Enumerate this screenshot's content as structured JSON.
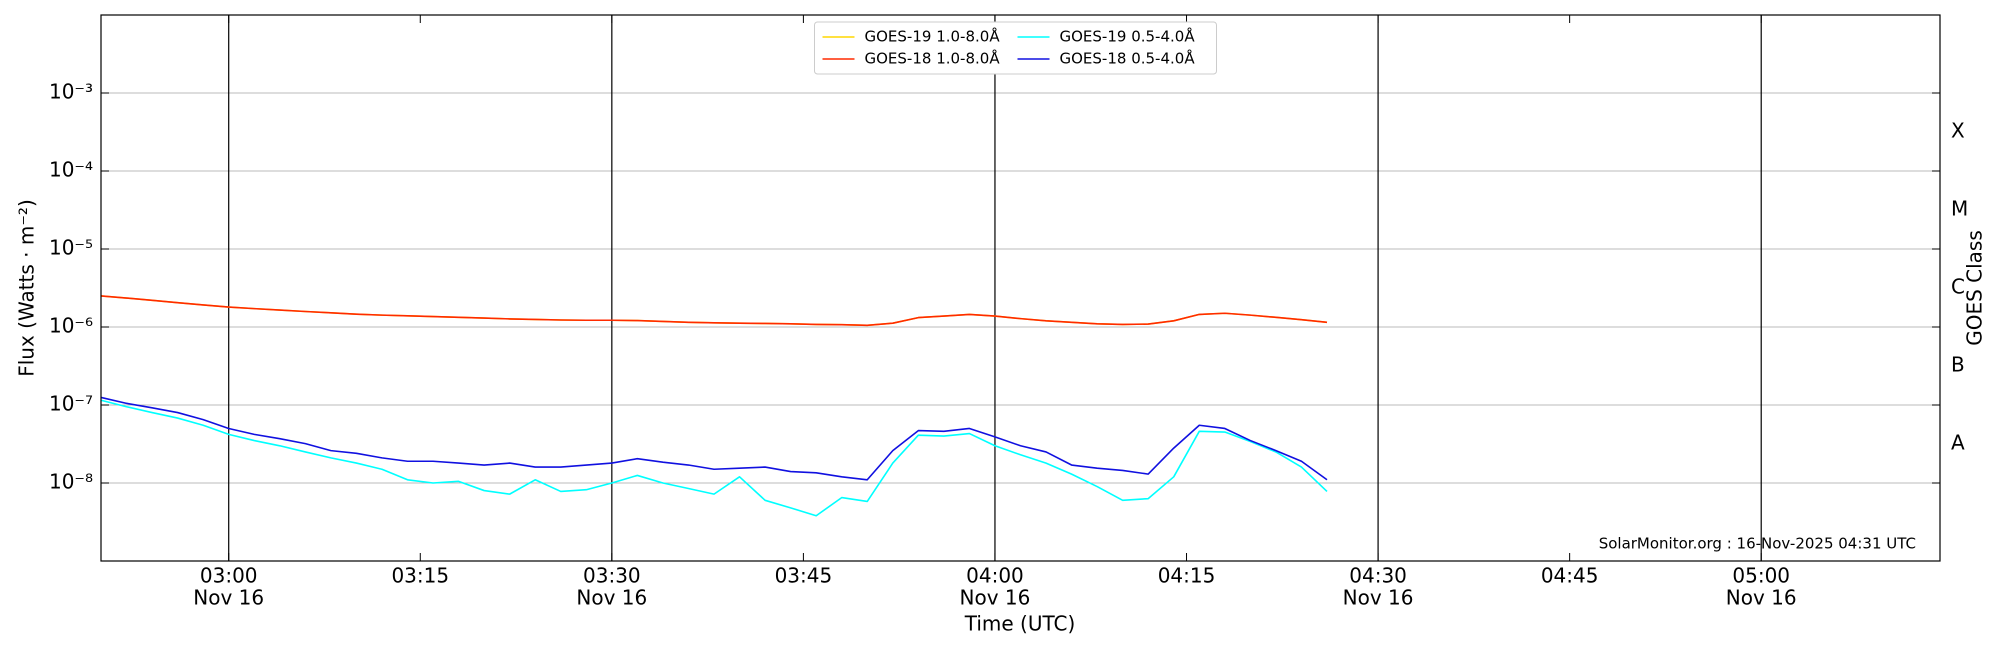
{
  "chart_data": {
    "type": "line",
    "ylabel": "Flux (Watts · m⁻²)",
    "xlabel": "Time (UTC)",
    "y2label": "GOES Class",
    "annotation": "SolarMonitor.org : 16-Nov-2025 04:31 UTC",
    "log_y": true,
    "grid": true,
    "legend": "upper center",
    "xlim": [
      "Nov 16 02:50",
      "Nov 16 05:14"
    ],
    "xticks": [
      {
        "value": "Nov 16 03:00",
        "label": "03:00",
        "date": "Nov 16"
      },
      {
        "value": "Nov 16 03:15",
        "label": "03:15"
      },
      {
        "value": "Nov 16 03:30",
        "label": "03:30",
        "date": "Nov 16"
      },
      {
        "value": "Nov 16 03:45",
        "label": "03:45"
      },
      {
        "value": "Nov 16 04:00",
        "label": "04:00",
        "date": "Nov 16"
      },
      {
        "value": "Nov 16 04:15",
        "label": "04:15"
      },
      {
        "value": "Nov 16 04:30",
        "label": "04:30",
        "date": "Nov 16"
      },
      {
        "value": "Nov 16 04:45",
        "label": "04:45"
      },
      {
        "value": "Nov 16 05:00",
        "label": "05:00",
        "date": "Nov 16"
      }
    ],
    "ylim": [
      1e-09,
      0.01
    ],
    "yticks": [
      {
        "value": 1e-08,
        "label": "10⁻⁸"
      },
      {
        "value": 1e-07,
        "label": "10⁻⁷"
      },
      {
        "value": 1e-06,
        "label": "10⁻⁶"
      },
      {
        "value": 1e-05,
        "label": "10⁻⁵"
      },
      {
        "value": 0.0001,
        "label": "10⁻⁴"
      },
      {
        "value": 0.001,
        "label": "10⁻³"
      }
    ],
    "y2lim": [
      1e-09,
      0.01
    ],
    "y2ticks": [
      {
        "value": 3.16e-08,
        "label": "A"
      },
      {
        "value": 3.16e-07,
        "label": "B"
      },
      {
        "value": 3.16e-06,
        "label": "C"
      },
      {
        "value": 3.16e-05,
        "label": "M"
      },
      {
        "value": 0.000316,
        "label": "X"
      }
    ],
    "x": [
      "Nov 16 02:50",
      "Nov 16 02:52",
      "Nov 16 02:54",
      "Nov 16 02:56",
      "Nov 16 02:58",
      "Nov 16 03:00",
      "Nov 16 03:02",
      "Nov 16 03:04",
      "Nov 16 03:06",
      "Nov 16 03:08",
      "Nov 16 03:10",
      "Nov 16 03:12",
      "Nov 16 03:14",
      "Nov 16 03:16",
      "Nov 16 03:18",
      "Nov 16 03:20",
      "Nov 16 03:22",
      "Nov 16 03:24",
      "Nov 16 03:26",
      "Nov 16 03:28",
      "Nov 16 03:30",
      "Nov 16 03:32",
      "Nov 16 03:34",
      "Nov 16 03:36",
      "Nov 16 03:38",
      "Nov 16 03:40",
      "Nov 16 03:42",
      "Nov 16 03:44",
      "Nov 16 03:46",
      "Nov 16 03:48",
      "Nov 16 03:50",
      "Nov 16 03:52",
      "Nov 16 03:54",
      "Nov 16 03:56",
      "Nov 16 03:58",
      "Nov 16 04:00",
      "Nov 16 04:02",
      "Nov 16 04:04",
      "Nov 16 04:06",
      "Nov 16 04:08",
      "Nov 16 04:10",
      "Nov 16 04:12",
      "Nov 16 04:14",
      "Nov 16 04:16",
      "Nov 16 04:18",
      "Nov 16 04:20",
      "Nov 16 04:22",
      "Nov 16 04:24",
      "Nov 16 04:26"
    ],
    "series": [
      {
        "name": "GOES-19 1.0-8.0Å",
        "color": "#ffd700",
        "values": [
          2.5e-06,
          2.35e-06,
          2.2e-06,
          2.05e-06,
          1.92e-06,
          1.8e-06,
          1.72e-06,
          1.65e-06,
          1.58e-06,
          1.52e-06,
          1.46e-06,
          1.42e-06,
          1.39e-06,
          1.36e-06,
          1.33e-06,
          1.3e-06,
          1.27e-06,
          1.25e-06,
          1.23e-06,
          1.22e-06,
          1.22e-06,
          1.21e-06,
          1.18e-06,
          1.15e-06,
          1.13e-06,
          1.12e-06,
          1.11e-06,
          1.1e-06,
          1.08e-06,
          1.07e-06,
          1.05e-06,
          1.12e-06,
          1.32e-06,
          1.38e-06,
          1.45e-06,
          1.38e-06,
          1.28e-06,
          1.2e-06,
          1.15e-06,
          1.1e-06,
          1.08e-06,
          1.09e-06,
          1.2e-06,
          1.45e-06,
          1.5e-06,
          1.42e-06,
          1.33e-06,
          1.24e-06,
          1.15e-06
        ]
      },
      {
        "name": "GOES-18 1.0-8.0Å",
        "color": "#ff2a00",
        "values": [
          2.5e-06,
          2.35e-06,
          2.2e-06,
          2.05e-06,
          1.92e-06,
          1.8e-06,
          1.72e-06,
          1.65e-06,
          1.58e-06,
          1.52e-06,
          1.46e-06,
          1.42e-06,
          1.39e-06,
          1.36e-06,
          1.33e-06,
          1.3e-06,
          1.27e-06,
          1.25e-06,
          1.23e-06,
          1.22e-06,
          1.22e-06,
          1.21e-06,
          1.18e-06,
          1.15e-06,
          1.13e-06,
          1.12e-06,
          1.11e-06,
          1.1e-06,
          1.08e-06,
          1.07e-06,
          1.05e-06,
          1.12e-06,
          1.32e-06,
          1.38e-06,
          1.45e-06,
          1.38e-06,
          1.28e-06,
          1.2e-06,
          1.15e-06,
          1.1e-06,
          1.08e-06,
          1.09e-06,
          1.2e-06,
          1.45e-06,
          1.5e-06,
          1.42e-06,
          1.33e-06,
          1.24e-06,
          1.15e-06
        ]
      },
      {
        "name": "GOES-19 0.5-4.0Å",
        "color": "#00ffff",
        "values": [
          1.15e-07,
          9.5e-08,
          8e-08,
          6.8e-08,
          5.5e-08,
          4.2e-08,
          3.5e-08,
          3e-08,
          2.5e-08,
          2.1e-08,
          1.8e-08,
          1.5e-08,
          1.1e-08,
          1e-08,
          1.05e-08,
          8e-09,
          7.2e-09,
          1.1e-08,
          7.8e-09,
          8.2e-09,
          1e-08,
          1.25e-08,
          1e-08,
          8.5e-09,
          7.2e-09,
          1.2e-08,
          6e-09,
          4.8e-09,
          3.8e-09,
          6.5e-09,
          5.8e-09,
          1.8e-08,
          4.1e-08,
          4e-08,
          4.3e-08,
          3e-08,
          2.3e-08,
          1.8e-08,
          1.3e-08,
          9e-09,
          6e-09,
          6.3e-09,
          1.2e-08,
          4.6e-08,
          4.5e-08,
          3.4e-08,
          2.5e-08,
          1.6e-08,
          7.8e-09
        ]
      },
      {
        "name": "GOES-18 0.5-4.0Å",
        "color": "#1010e0",
        "values": [
          1.25e-07,
          1.05e-07,
          9.2e-08,
          8e-08,
          6.5e-08,
          5e-08,
          4.2e-08,
          3.7e-08,
          3.2e-08,
          2.6e-08,
          2.4e-08,
          2.1e-08,
          1.9e-08,
          1.9e-08,
          1.8e-08,
          1.7e-08,
          1.8e-08,
          1.6e-08,
          1.6e-08,
          1.7e-08,
          1.8e-08,
          2.05e-08,
          1.85e-08,
          1.7e-08,
          1.5e-08,
          1.55e-08,
          1.6e-08,
          1.4e-08,
          1.35e-08,
          1.2e-08,
          1.1e-08,
          2.6e-08,
          4.7e-08,
          4.6e-08,
          5e-08,
          3.9e-08,
          3e-08,
          2.5e-08,
          1.7e-08,
          1.55e-08,
          1.45e-08,
          1.3e-08,
          2.8e-08,
          5.5e-08,
          5e-08,
          3.5e-08,
          2.6e-08,
          1.9e-08,
          1.1e-08
        ]
      }
    ]
  }
}
